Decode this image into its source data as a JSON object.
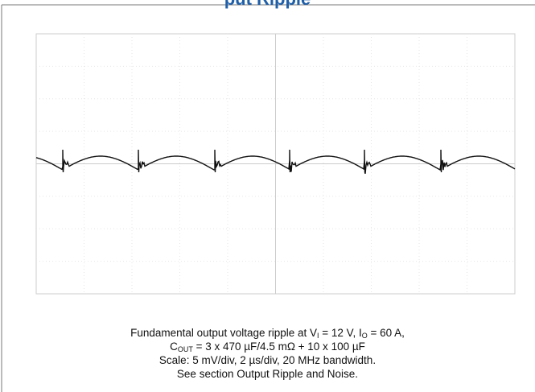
{
  "header": {
    "title": "put Ripple"
  },
  "caption": {
    "line1": [
      "Fundamental output voltage ripple at V",
      "I",
      " = 12 V, I",
      "O",
      " = 60 A,"
    ],
    "line2": [
      "C",
      "OUT",
      " = 3 x 470 µF/4.5 mΩ + 10 x 100 µF"
    ],
    "line3": [
      "Scale: 5 mV/div, 2 µs/div, 20 MHz bandwidth."
    ],
    "line4": [
      "See section Output Ripple and Noise."
    ]
  }
}
